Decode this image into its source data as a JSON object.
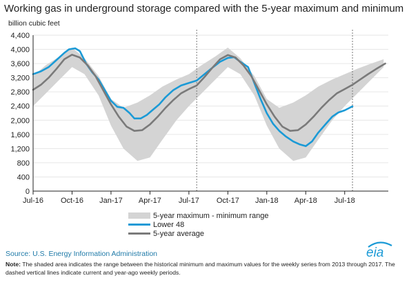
{
  "chart_data": {
    "type": "area",
    "title": "Working gas in underground storage compared with the 5-year maximum and minimum",
    "ylabel": "billion cubic feet",
    "xlabel": "",
    "ylim": [
      0,
      4400
    ],
    "yticks": [
      0,
      400,
      800,
      1200,
      1600,
      2000,
      2400,
      2800,
      3200,
      3600,
      4000,
      4400
    ],
    "xlim": [
      2016.5,
      2018.78
    ],
    "xticks": [
      {
        "label": "Jul-16",
        "x": 2016.5
      },
      {
        "label": "Oct-16",
        "x": 2016.75
      },
      {
        "label": "Jan-17",
        "x": 2017.0
      },
      {
        "label": "Apr-17",
        "x": 2017.25
      },
      {
        "label": "Jul-17",
        "x": 2017.5
      },
      {
        "label": "Oct-17",
        "x": 2017.75
      },
      {
        "label": "Jan-18",
        "x": 2018.0
      },
      {
        "label": "Apr-18",
        "x": 2018.25
      },
      {
        "label": "Jul-18",
        "x": 2018.5
      }
    ],
    "dashed_vlines": [
      2017.55,
      2018.55
    ],
    "grid": "horizontal",
    "legend": [
      {
        "label": "5-year maximum - minimum range",
        "color": "#d4d4d4"
      },
      {
        "label": "Lower 48",
        "color": "#1b9ad6"
      },
      {
        "label": "5-year average",
        "color": "#7a7a7a"
      }
    ],
    "series": [
      {
        "name": "5-year maximum - minimum range",
        "role": "band",
        "color": "#d4d4d4",
        "x": [
          2016.5,
          2016.58,
          2016.67,
          2016.75,
          2016.83,
          2016.92,
          2017.0,
          2017.08,
          2017.17,
          2017.25,
          2017.33,
          2017.42,
          2017.5,
          2017.58,
          2017.67,
          2017.75,
          2017.83,
          2017.92,
          2018.0,
          2018.08,
          2018.17,
          2018.25,
          2018.33,
          2018.42,
          2018.5,
          2018.58,
          2018.67,
          2018.75
        ],
        "low": [
          2400,
          2750,
          3150,
          3500,
          3300,
          2700,
          1850,
          1200,
          850,
          950,
          1450,
          2000,
          2400,
          2750,
          3150,
          3500,
          3300,
          2700,
          1850,
          1200,
          850,
          950,
          1450,
          2000,
          2400,
          2750,
          3150,
          3500
        ],
        "high": [
          3250,
          3550,
          3800,
          4050,
          3750,
          3250,
          2600,
          2350,
          2500,
          2700,
          2950,
          3150,
          3300,
          3550,
          3800,
          4050,
          3750,
          3250,
          2600,
          2350,
          2500,
          2700,
          2950,
          3150,
          3300,
          3450,
          3600,
          3720
        ]
      },
      {
        "name": "Lower 48",
        "role": "line",
        "color": "#1b9ad6",
        "x": [
          2016.5,
          2016.55,
          2016.6,
          2016.65,
          2016.7,
          2016.73,
          2016.77,
          2016.8,
          2016.84,
          2016.88,
          2016.92,
          2016.96,
          2017.0,
          2017.04,
          2017.08,
          2017.12,
          2017.15,
          2017.19,
          2017.23,
          2017.27,
          2017.31,
          2017.35,
          2017.4,
          2017.45,
          2017.5,
          2017.55,
          2017.6,
          2017.65,
          2017.7,
          2017.75,
          2017.79,
          2017.83,
          2017.88,
          2017.92,
          2017.96,
          2018.0,
          2018.04,
          2018.08,
          2018.12,
          2018.17,
          2018.21,
          2018.25,
          2018.29,
          2018.33,
          2018.38,
          2018.42,
          2018.46,
          2018.5,
          2018.55
        ],
        "values": [
          3300,
          3380,
          3500,
          3700,
          3900,
          4000,
          4030,
          3950,
          3600,
          3350,
          3150,
          2850,
          2550,
          2380,
          2350,
          2200,
          2050,
          2050,
          2150,
          2300,
          2450,
          2650,
          2850,
          2980,
          3050,
          3120,
          3300,
          3480,
          3650,
          3760,
          3780,
          3650,
          3500,
          3050,
          2600,
          2200,
          1900,
          1700,
          1550,
          1400,
          1320,
          1270,
          1400,
          1650,
          1900,
          2100,
          2220,
          2280,
          2390
        ]
      },
      {
        "name": "5-year average",
        "role": "line",
        "color": "#7a7a7a",
        "x": [
          2016.5,
          2016.55,
          2016.6,
          2016.65,
          2016.7,
          2016.75,
          2016.8,
          2016.85,
          2016.9,
          2016.95,
          2017.0,
          2017.05,
          2017.1,
          2017.15,
          2017.2,
          2017.25,
          2017.3,
          2017.35,
          2017.4,
          2017.45,
          2017.5,
          2017.55,
          2017.6,
          2017.65,
          2017.7,
          2017.75,
          2017.8,
          2017.85,
          2017.9,
          2017.95,
          2018.0,
          2018.05,
          2018.1,
          2018.15,
          2018.2,
          2018.25,
          2018.3,
          2018.35,
          2018.4,
          2018.45,
          2018.5,
          2018.55,
          2018.6,
          2018.65,
          2018.7,
          2018.76
        ],
        "values": [
          2860,
          3000,
          3200,
          3450,
          3720,
          3850,
          3770,
          3550,
          3250,
          2850,
          2450,
          2100,
          1820,
          1700,
          1720,
          1880,
          2100,
          2350,
          2570,
          2760,
          2880,
          2980,
          3220,
          3480,
          3720,
          3840,
          3770,
          3550,
          3250,
          2850,
          2450,
          2100,
          1820,
          1700,
          1720,
          1880,
          2100,
          2350,
          2570,
          2760,
          2880,
          3000,
          3150,
          3300,
          3440,
          3600
        ]
      }
    ]
  },
  "legend_labels": {
    "range": "5-year maximum - minimum range",
    "lower48": "Lower 48",
    "average": "5-year average"
  },
  "source": "Source:  U.S. Energy Information Administration",
  "note": {
    "label": "Note:",
    "text": " The shaded area indicates the range between the historical minimum and maximum values for the weekly series from 2013 through 2017. The dashed vertical lines indicate current and year-ago weekly periods."
  },
  "logo": {
    "text": "eia",
    "color": "#1b9ad6"
  }
}
